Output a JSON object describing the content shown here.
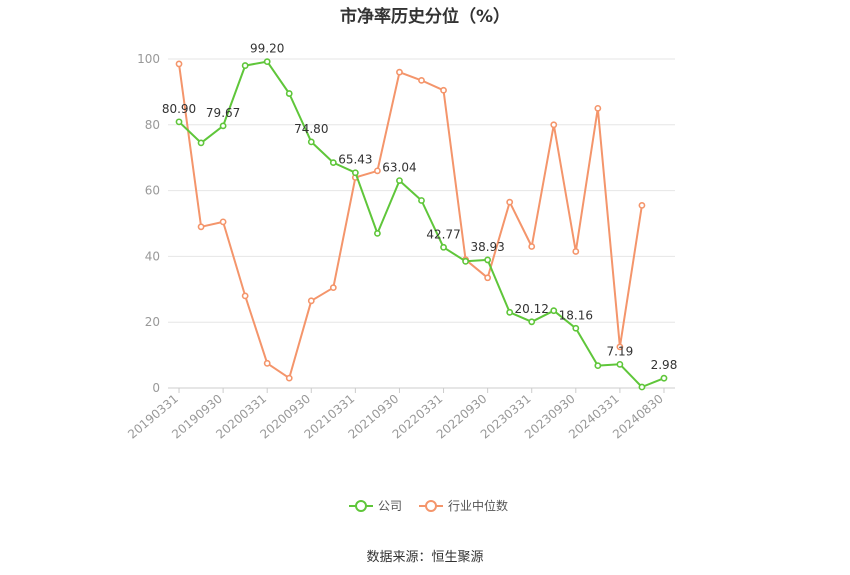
{
  "chart_data": {
    "type": "line",
    "title": "市净率历史分位（%）",
    "source": "数据来源：恒生聚源",
    "ylim": [
      0,
      100
    ],
    "yticks": [
      "0",
      "20",
      "40",
      "60",
      "80",
      "100"
    ],
    "x_tick_labels": [
      "20190331",
      "20190930",
      "20200331",
      "20200930",
      "20210331",
      "20210930",
      "20220331",
      "20220930",
      "20230331",
      "20230930",
      "20240331",
      "20240830"
    ],
    "x": [
      "20190331",
      "20190630",
      "20190930",
      "20191231",
      "20200331",
      "20200630",
      "20200930",
      "20201231",
      "20210331",
      "20210630",
      "20210930",
      "20211231",
      "20220331",
      "20220630",
      "20220930",
      "20221231",
      "20230331",
      "20230630",
      "20230930",
      "20231231",
      "20240331",
      "20240630",
      "20240830"
    ],
    "grid": true,
    "legend_position": "bottom",
    "series": [
      {
        "name": "公司",
        "color": "#5fc63a",
        "values": [
          80.9,
          74.5,
          79.67,
          98.0,
          99.2,
          89.5,
          74.8,
          68.5,
          65.43,
          47.0,
          63.04,
          57.0,
          42.77,
          38.5,
          38.93,
          23.0,
          20.12,
          23.5,
          18.16,
          6.8,
          7.19,
          0.3,
          2.98
        ],
        "labels": [
          "80.90",
          "",
          "79.67",
          "",
          "99.20",
          "",
          "74.80",
          "",
          "65.43",
          "",
          "63.04",
          "",
          "42.77",
          "",
          "38.93",
          "",
          "20.12",
          "",
          "18.16",
          "",
          "7.19",
          "",
          "2.98"
        ]
      },
      {
        "name": "行业中位数",
        "color": "#f4956b",
        "values": [
          98.5,
          49.0,
          50.5,
          28.0,
          7.5,
          3.0,
          26.5,
          30.5,
          64.0,
          66.0,
          96.0,
          93.5,
          90.5,
          39.0,
          33.5,
          56.5,
          43.0,
          80.0,
          41.5,
          85.0,
          12.5,
          55.5,
          null
        ]
      }
    ]
  }
}
